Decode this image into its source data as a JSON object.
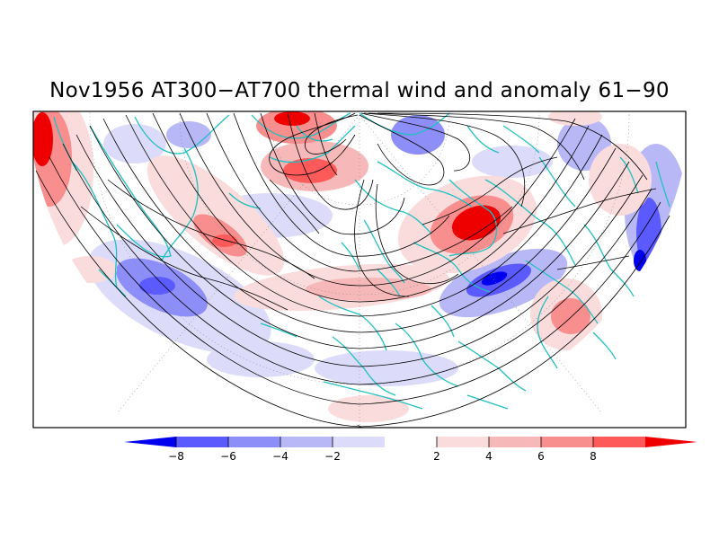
{
  "title": "Nov1956 AT300−AT700 thermal wind and anomaly 61−90",
  "colorbar": {
    "labels": [
      "−8",
      "−6",
      "−4",
      "−2",
      "2",
      "4",
      "6",
      "8"
    ],
    "colors": [
      "#0000ee",
      "#5a5aff",
      "#8e8ef8",
      "#b8b8f6",
      "#dcdcfa",
      "#ffffff",
      "#fadcdc",
      "#f6b8b8",
      "#f88e8e",
      "#ff5a5a",
      "#ee0000"
    ]
  },
  "map": {
    "projection": "polar-stereographic-northern-hemisphere",
    "land_color": "#20c0c0",
    "streamline_color": "#000000"
  }
}
